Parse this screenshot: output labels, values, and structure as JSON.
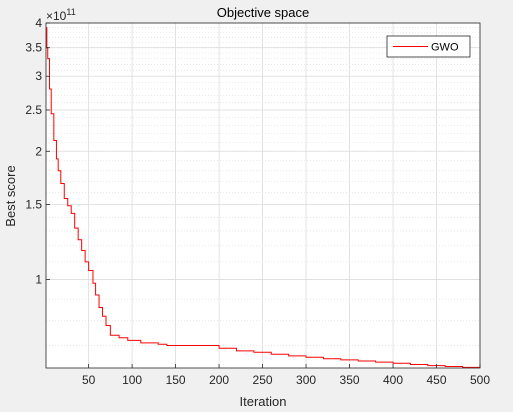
{
  "chart_data": {
    "type": "line",
    "title": "Objective space",
    "xlabel": "Iteration",
    "ylabel": "Best score",
    "y_scale": "log",
    "y_exponent_label": "×10",
    "y_exponent_power": "11",
    "xlim": [
      1,
      500
    ],
    "ylim": [
      0.62,
      4.0
    ],
    "x_ticks": [
      50,
      100,
      150,
      200,
      250,
      300,
      350,
      400,
      450,
      500
    ],
    "y_ticks": [
      1,
      1.5,
      2,
      2.5,
      3,
      3.5,
      4
    ],
    "grid": "on (major and minor)",
    "legend_position": "top-right",
    "series": [
      {
        "name": "GWO",
        "color": "#ff0000",
        "x": [
          1,
          2,
          3,
          5,
          7,
          10,
          13,
          15,
          18,
          22,
          26,
          30,
          34,
          38,
          42,
          46,
          50,
          55,
          58,
          62,
          66,
          70,
          75,
          80,
          85,
          90,
          95,
          100,
          110,
          120,
          130,
          140,
          150,
          160,
          170,
          180,
          190,
          200,
          220,
          240,
          260,
          280,
          300,
          320,
          340,
          360,
          380,
          400,
          420,
          440,
          460,
          480,
          500
        ],
        "y": [
          3.9,
          3.5,
          3.3,
          2.8,
          2.45,
          2.12,
          1.92,
          1.8,
          1.68,
          1.55,
          1.49,
          1.43,
          1.32,
          1.24,
          1.17,
          1.1,
          1.05,
          0.98,
          0.92,
          0.86,
          0.82,
          0.78,
          0.74,
          0.74,
          0.73,
          0.73,
          0.72,
          0.72,
          0.71,
          0.71,
          0.705,
          0.7,
          0.7,
          0.7,
          0.7,
          0.7,
          0.7,
          0.69,
          0.68,
          0.675,
          0.668,
          0.662,
          0.657,
          0.652,
          0.648,
          0.644,
          0.64,
          0.636,
          0.632,
          0.628,
          0.625,
          0.622,
          0.62
        ]
      }
    ]
  }
}
